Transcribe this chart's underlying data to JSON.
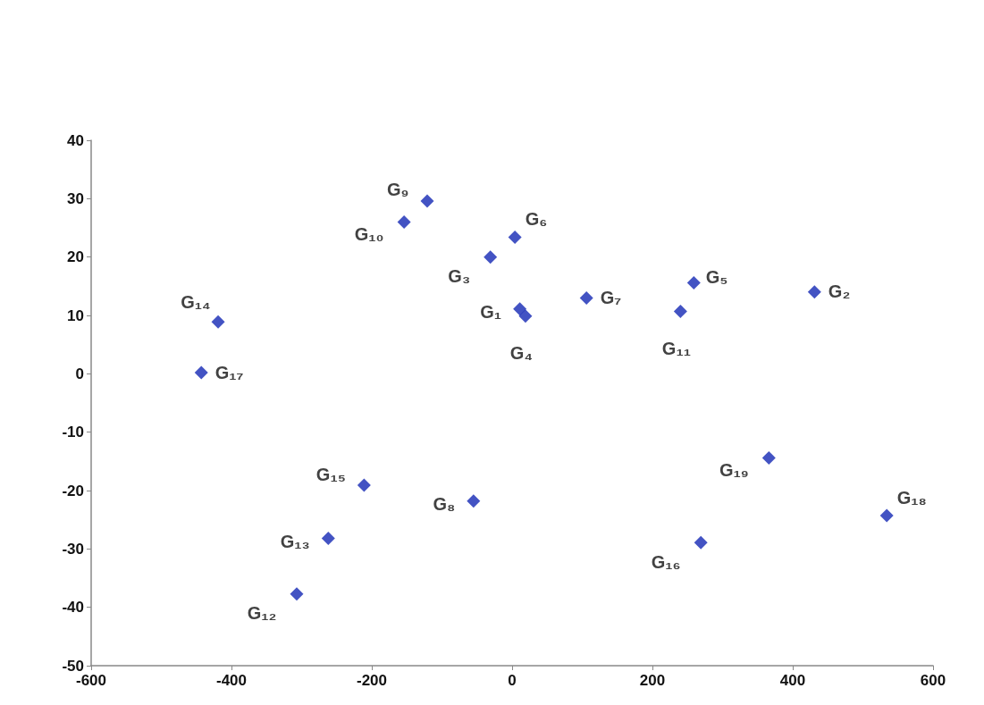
{
  "chart_data": {
    "type": "scatter",
    "marker": "diamond",
    "grid": false,
    "x": [
      11,
      431,
      -31,
      19,
      259,
      4,
      106,
      -55,
      -121,
      -154,
      240,
      -307,
      -262,
      -419,
      -211,
      269,
      -443,
      534,
      366
    ],
    "series": [
      {
        "color": "#1428b4",
        "values": [
          11.1,
          14.0,
          20.0,
          9.9,
          15.6,
          23.4,
          13.0,
          -21.8,
          29.6,
          26.0,
          10.7,
          -37.7,
          -28.2,
          8.9,
          -19.1,
          -28.9,
          0.2,
          -24.3,
          -14.4
        ]
      }
    ],
    "xlim": [
      -600,
      600
    ],
    "xticks": [
      -600,
      -400,
      -200,
      0,
      200,
      400,
      600
    ],
    "ylim": [
      -50,
      40
    ],
    "yticks": [
      -50,
      -40,
      -30,
      -20,
      -10,
      0,
      10,
      20,
      30,
      40
    ],
    "annotations": [
      {
        "text": "G₁",
        "x": 11,
        "y": 11.1
      },
      {
        "text": "G₂",
        "x": 431,
        "y": 14.0
      },
      {
        "text": "G₃",
        "x": -31,
        "y": 20.0
      },
      {
        "text": "G₄",
        "x": 19,
        "y": 9.9
      },
      {
        "text": "G₅",
        "x": 259,
        "y": 15.6
      },
      {
        "text": "G₆",
        "x": 4,
        "y": 23.4
      },
      {
        "text": "G₇",
        "x": 106,
        "y": 13.0
      },
      {
        "text": "G₈",
        "x": -55,
        "y": -21.8
      },
      {
        "text": "G₉",
        "x": -121,
        "y": 29.6
      },
      {
        "text": "G₁₀",
        "x": -154,
        "y": 26.0
      },
      {
        "text": "G₁₁",
        "x": 240,
        "y": 10.7
      },
      {
        "text": "G₁₂",
        "x": -307,
        "y": -37.7
      },
      {
        "text": "G₁₃",
        "x": -262,
        "y": -28.2
      },
      {
        "text": "G₁₄",
        "x": -419,
        "y": 8.9
      },
      {
        "text": "G₁₅",
        "x": -211,
        "y": -19.1
      },
      {
        "text": "G₁₆",
        "x": 269,
        "y": -28.9
      },
      {
        "text": "G₁₇",
        "x": -443,
        "y": 0.2
      },
      {
        "text": "G₁₈",
        "x": 534,
        "y": -24.3
      },
      {
        "text": "G₁₉",
        "x": 366,
        "y": -14.4
      }
    ]
  }
}
